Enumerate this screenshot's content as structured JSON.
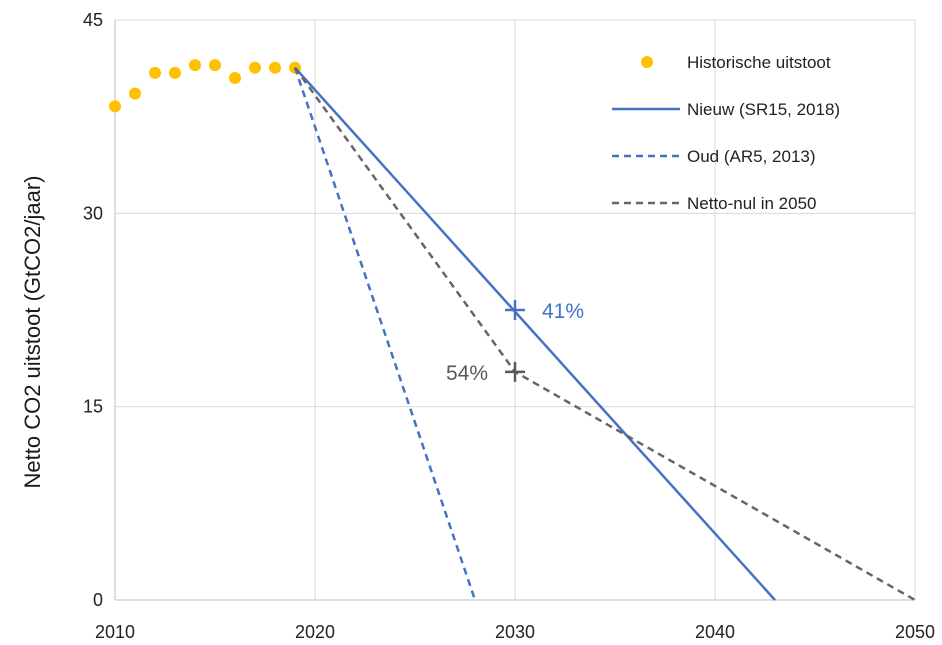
{
  "chart_data": {
    "type": "line",
    "title": "",
    "xlabel": "",
    "ylabel": "Netto CO2 uitstoot  (GtCO2/jaar)",
    "xlim": [
      2010,
      2050
    ],
    "ylim": [
      0,
      45
    ],
    "x_ticks": [
      2010,
      2020,
      2030,
      2040,
      2050
    ],
    "y_ticks": [
      0,
      15,
      30,
      45
    ],
    "grid": true,
    "legend_position": "top-right",
    "series": [
      {
        "name": "Historische uitstoot",
        "kind": "scatter",
        "color": "#FFC000",
        "points": [
          [
            2010,
            38.3
          ],
          [
            2011,
            39.3
          ],
          [
            2012,
            40.9
          ],
          [
            2013,
            40.9
          ],
          [
            2014,
            41.5
          ],
          [
            2015,
            41.5
          ],
          [
            2016,
            40.5
          ],
          [
            2017,
            41.3
          ],
          [
            2018,
            41.3
          ],
          [
            2019,
            41.3
          ]
        ]
      },
      {
        "name": "Nieuw (SR15, 2018)",
        "kind": "line",
        "style": "solid",
        "color": "#4472C4",
        "points": [
          [
            2019,
            41.3
          ],
          [
            2043,
            0
          ]
        ]
      },
      {
        "name": "Oud (AR5, 2013)",
        "kind": "line",
        "style": "dashed",
        "color": "#4472C4",
        "points": [
          [
            2019,
            41.3
          ],
          [
            2028,
            0
          ]
        ]
      },
      {
        "name": "Netto-nul in 2050",
        "kind": "line",
        "style": "dashed",
        "color": "#666666",
        "points": [
          [
            2019,
            41.3
          ],
          [
            2030,
            17.7
          ],
          [
            2050,
            0
          ]
        ]
      }
    ],
    "annotations": [
      {
        "text": "41%",
        "x": 2030,
        "y": 22.5,
        "color": "#4472C4",
        "side": "right"
      },
      {
        "text": "54%",
        "x": 2030,
        "y": 17.7,
        "color": "#595959",
        "side": "left"
      }
    ]
  }
}
